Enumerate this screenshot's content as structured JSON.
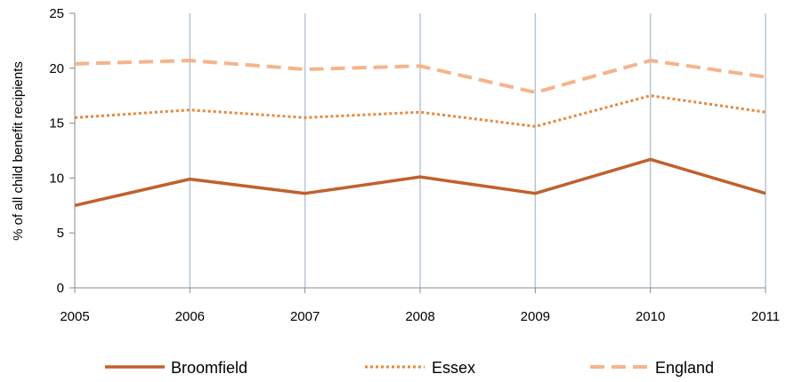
{
  "chart_data": {
    "type": "line",
    "title": "",
    "xlabel": "",
    "ylabel": "% of all child benefit recipients",
    "x": [
      "2005",
      "2006",
      "2007",
      "2008",
      "2009",
      "2010",
      "2011"
    ],
    "ylim": [
      0,
      25
    ],
    "yticks": [
      0,
      5,
      10,
      15,
      20,
      25
    ],
    "grid": "vertical",
    "legend_position": "bottom",
    "series": [
      {
        "name": "Broomfield",
        "values": [
          7.5,
          9.9,
          8.6,
          10.1,
          8.6,
          11.7,
          8.6
        ],
        "color": "#C0612B",
        "style": "solid"
      },
      {
        "name": "Essex",
        "values": [
          15.5,
          16.2,
          15.5,
          16.0,
          14.7,
          17.5,
          16.0
        ],
        "color": "#E8863A",
        "style": "dotted"
      },
      {
        "name": "England",
        "values": [
          20.4,
          20.7,
          19.9,
          20.2,
          17.8,
          20.7,
          19.2
        ],
        "color": "#F5B48A",
        "style": "dashed"
      }
    ]
  }
}
